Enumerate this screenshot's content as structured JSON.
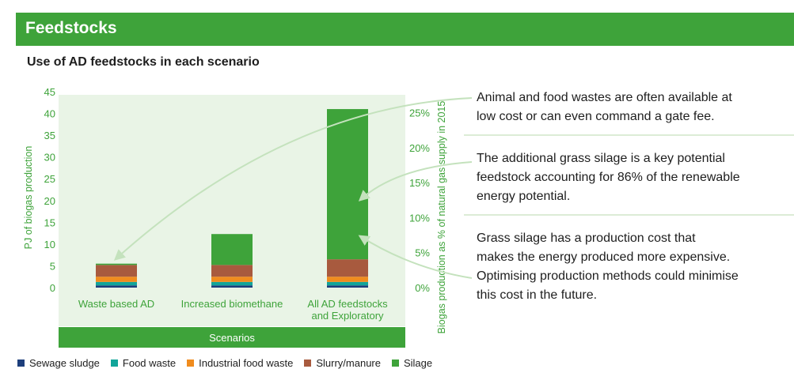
{
  "header": {
    "title": "Feedstocks"
  },
  "chart_data": {
    "type": "bar",
    "stacked": true,
    "title": "Use of AD feedstocks in each scenario",
    "xlabel": "Scenarios",
    "ylabel": "PJ of biogas production",
    "y2label": "Biogas production as % of natural gas supply in 2015",
    "ylim": [
      0,
      45
    ],
    "yticks": [
      0,
      5,
      10,
      15,
      20,
      25,
      30,
      35,
      40,
      45
    ],
    "y2ticks": [
      "0%",
      "5%",
      "10%",
      "15%",
      "20%",
      "25%"
    ],
    "y2_max_at": 25,
    "y2_max_ylabel_value": 40.2,
    "categories": [
      "Waste based AD",
      "Increased biomethane",
      "All AD feedstocks and Exploratory"
    ],
    "category_lines": [
      [
        "Waste based AD"
      ],
      [
        "Increased biomethane"
      ],
      [
        "All AD feedstocks",
        "and Exploratory"
      ]
    ],
    "series": [
      {
        "name": "Sewage sludge",
        "color": "#1d3f7c",
        "values": [
          0.5,
          0.5,
          0.5
        ]
      },
      {
        "name": "Food waste",
        "color": "#12a59a",
        "values": [
          0.8,
          0.8,
          0.8
        ]
      },
      {
        "name": "Industrial food waste",
        "color": "#f08c1e",
        "values": [
          1.2,
          1.2,
          1.2
        ]
      },
      {
        "name": "Slurry/manure",
        "color": "#a85a3e",
        "values": [
          2.7,
          2.7,
          4.0
        ]
      },
      {
        "name": "Silage",
        "color": "#3ea33a",
        "values": [
          0.3,
          7.1,
          34.5
        ]
      }
    ],
    "legend_position": "bottom-left",
    "grid": false
  },
  "callouts": [
    {
      "lines": [
        "Animal and food wastes are often available at",
        "low cost or can even command a gate fee."
      ]
    },
    {
      "lines": [
        "The additional grass silage is a key potential",
        "feedstock accounting for 86% of the renewable",
        "energy potential."
      ]
    },
    {
      "lines": [
        "Grass silage has a production cost that",
        "makes the energy produced more expensive.",
        "Optimising production methods could minimise",
        "this cost in the future."
      ]
    }
  ]
}
